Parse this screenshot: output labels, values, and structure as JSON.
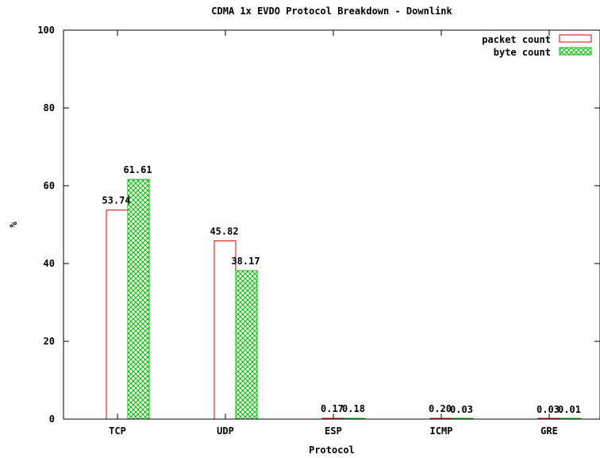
{
  "chart_data": {
    "type": "bar",
    "title": "CDMA 1x EVDO Protocol Breakdown - Downlink",
    "xlabel": "Protocol",
    "ylabel": "%",
    "ylim": [
      0,
      100
    ],
    "yticks": [
      0,
      20,
      40,
      60,
      80,
      100
    ],
    "categories": [
      "TCP",
      "UDP",
      "ESP",
      "ICMP",
      "GRE"
    ],
    "series": [
      {
        "name": "packet count",
        "values": [
          53.74,
          45.82,
          0.17,
          0.2,
          0.03
        ],
        "labels": [
          "53.74",
          "45.82",
          "0.17",
          "0.20",
          "0.03"
        ],
        "color": "#dd0000",
        "fill": "none"
      },
      {
        "name": "byte count",
        "values": [
          61.61,
          38.17,
          0.18,
          0.03,
          0.01
        ],
        "labels": [
          "61.61",
          "38.17",
          "0.18",
          "0.03",
          "0.01"
        ],
        "color": "#00bb00",
        "fill": "crosshatch"
      }
    ],
    "legend": "top-right",
    "grid": false
  }
}
